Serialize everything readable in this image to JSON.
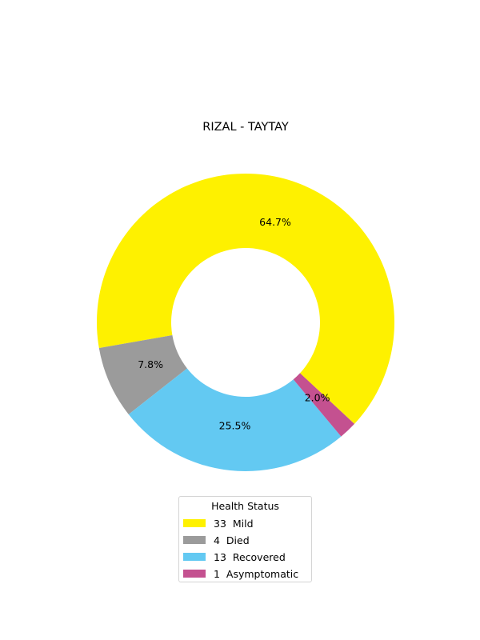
{
  "chart_data": {
    "type": "pie",
    "title": "RIZAL - TAYTAY",
    "donut": true,
    "legend_title": "Health Status",
    "legend_position": "bottom-center",
    "slices": [
      {
        "label": "Mild",
        "count": 33,
        "percent": 64.7,
        "pct_label": "64.7%",
        "legend_label": "33  Mild",
        "color": "#fef100"
      },
      {
        "label": "Died",
        "count": 4,
        "percent": 7.8,
        "pct_label": "7.8%",
        "legend_label": "4  Died",
        "color": "#9b9b9b"
      },
      {
        "label": "Recovered",
        "count": 13,
        "percent": 25.5,
        "pct_label": "25.5%",
        "legend_label": "13  Recovered",
        "color": "#63c9f2"
      },
      {
        "label": "Asymptomatic",
        "count": 1,
        "percent": 2.0,
        "pct_label": "2.0%",
        "legend_label": "1  Asymptomatic",
        "color": "#c45190"
      }
    ]
  }
}
